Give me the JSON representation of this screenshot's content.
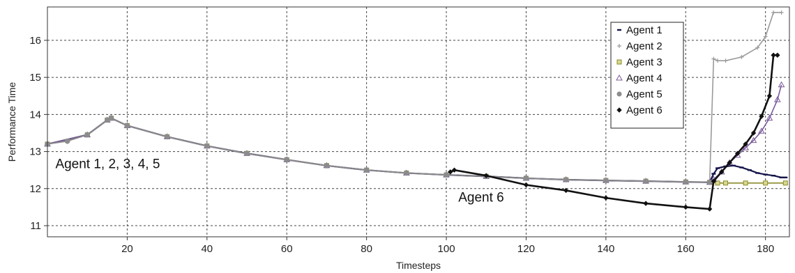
{
  "chart_data": {
    "type": "line",
    "title": "",
    "xlabel": "Timesteps",
    "ylabel": "Performance Time",
    "xlim": [
      0,
      186
    ],
    "ylim": [
      10.7,
      16.9
    ],
    "xticks": [
      20,
      40,
      60,
      80,
      100,
      120,
      140,
      160,
      180
    ],
    "yticks": [
      11,
      12,
      13,
      14,
      15,
      16
    ],
    "grid": true,
    "legend_position": "top-right",
    "annotations": [
      {
        "text": "Agent 1, 2, 3, 4, 5",
        "x": 2,
        "y": 12.55
      },
      {
        "text": "Agent 6",
        "x": 103,
        "y": 11.65
      }
    ],
    "series": [
      {
        "name": "Agent 1",
        "color": "#15154a",
        "marker": "dash",
        "x": [
          0,
          10,
          15,
          16,
          20,
          30,
          40,
          50,
          60,
          70,
          80,
          90,
          100,
          110,
          120,
          130,
          140,
          150,
          160,
          166,
          167,
          168,
          170,
          172,
          174,
          176,
          178,
          180,
          182,
          184,
          185
        ],
        "values": [
          13.2,
          13.45,
          13.85,
          13.9,
          13.7,
          13.4,
          13.15,
          12.95,
          12.78,
          12.62,
          12.5,
          12.42,
          12.37,
          12.33,
          12.28,
          12.24,
          12.22,
          12.2,
          12.18,
          12.17,
          12.4,
          12.55,
          12.6,
          12.62,
          12.57,
          12.5,
          12.42,
          12.38,
          12.35,
          12.3,
          12.3
        ]
      },
      {
        "name": "Agent 2",
        "color": "#9a9a9a",
        "marker": "plus",
        "x": [
          0,
          10,
          15,
          16,
          20,
          30,
          40,
          50,
          60,
          70,
          80,
          90,
          100,
          110,
          120,
          130,
          140,
          150,
          160,
          166,
          167,
          168,
          170,
          174,
          178,
          180,
          182,
          184
        ],
        "values": [
          13.2,
          13.45,
          13.85,
          13.9,
          13.7,
          13.4,
          13.15,
          12.95,
          12.78,
          12.62,
          12.5,
          12.42,
          12.37,
          12.33,
          12.28,
          12.24,
          12.22,
          12.2,
          12.18,
          12.17,
          15.5,
          15.45,
          15.45,
          15.55,
          15.8,
          16.1,
          16.75,
          16.75
        ]
      },
      {
        "name": "Agent 3",
        "color": "#8a8a2a",
        "marker": "square",
        "x": [
          0,
          10,
          15,
          16,
          20,
          30,
          40,
          50,
          60,
          70,
          80,
          90,
          100,
          110,
          120,
          130,
          140,
          150,
          160,
          166,
          168,
          170,
          175,
          180,
          185
        ],
        "values": [
          13.2,
          13.45,
          13.85,
          13.9,
          13.7,
          13.4,
          13.15,
          12.95,
          12.78,
          12.62,
          12.5,
          12.42,
          12.37,
          12.33,
          12.28,
          12.24,
          12.22,
          12.2,
          12.18,
          12.17,
          12.15,
          12.15,
          12.15,
          12.15,
          12.15
        ]
      },
      {
        "name": "Agent 4",
        "color": "#7a5a9a",
        "marker": "triangle",
        "x": [
          0,
          10,
          15,
          16,
          20,
          30,
          40,
          50,
          60,
          70,
          80,
          90,
          100,
          110,
          120,
          130,
          140,
          150,
          160,
          166,
          167,
          169,
          171,
          173,
          175,
          177,
          179,
          181,
          183,
          184
        ],
        "values": [
          13.2,
          13.45,
          13.85,
          13.9,
          13.7,
          13.4,
          13.15,
          12.95,
          12.78,
          12.62,
          12.5,
          12.42,
          12.37,
          12.33,
          12.28,
          12.24,
          12.22,
          12.2,
          12.18,
          12.17,
          12.25,
          12.45,
          12.7,
          12.9,
          13.1,
          13.3,
          13.55,
          13.9,
          14.4,
          14.8
        ]
      },
      {
        "name": "Agent 5",
        "color": "#8c8c8c",
        "marker": "circle",
        "x": [
          0,
          5,
          10,
          15,
          16,
          20,
          30,
          40,
          50,
          60,
          70,
          80,
          90,
          100,
          110,
          120,
          130,
          140,
          150,
          160,
          166
        ],
        "values": [
          13.2,
          13.28,
          13.45,
          13.85,
          13.9,
          13.7,
          13.4,
          13.15,
          12.95,
          12.78,
          12.62,
          12.5,
          12.42,
          12.37,
          12.33,
          12.28,
          12.24,
          12.22,
          12.2,
          12.18,
          12.17
        ]
      },
      {
        "name": "Agent 6",
        "color": "#111111",
        "marker": "diamond",
        "x": [
          101,
          102,
          110,
          120,
          130,
          140,
          150,
          160,
          166,
          167,
          169,
          171,
          173,
          175,
          177,
          179,
          181,
          182,
          183
        ],
        "values": [
          12.45,
          12.5,
          12.35,
          12.1,
          11.95,
          11.75,
          11.6,
          11.5,
          11.45,
          12.2,
          12.45,
          12.7,
          12.95,
          13.2,
          13.5,
          13.95,
          14.5,
          15.6,
          15.6
        ]
      }
    ]
  }
}
